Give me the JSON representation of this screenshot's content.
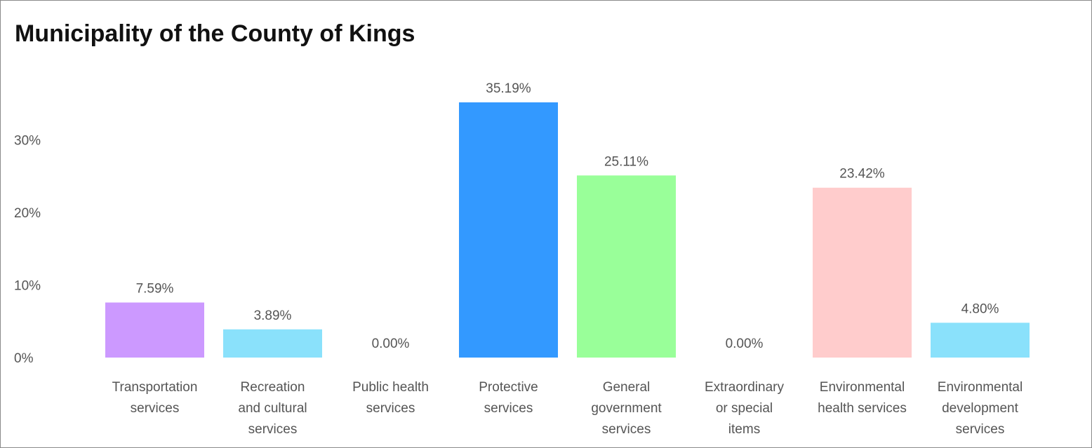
{
  "chart_data": {
    "type": "bar",
    "title": "Municipality of the County of Kings",
    "xlabel": "",
    "ylabel": "",
    "ylim": [
      0,
      35.19
    ],
    "yticks": [
      0,
      10,
      20,
      30
    ],
    "ytick_labels": [
      "0%",
      "10%",
      "20%",
      "30%"
    ],
    "grid": false,
    "categories": [
      [
        "Transportation",
        "services"
      ],
      [
        "Recreation",
        "and cultural",
        "services"
      ],
      [
        "Public health",
        "services"
      ],
      [
        "Protective",
        "services"
      ],
      [
        "General",
        "government",
        "services"
      ],
      [
        "Extraordinary",
        "or special",
        "items"
      ],
      [
        "Environmental",
        "health services"
      ],
      [
        "Environmental",
        "development",
        "services"
      ]
    ],
    "values": [
      7.59,
      3.89,
      0.0,
      35.19,
      25.11,
      0.0,
      23.42,
      4.8
    ],
    "value_labels": [
      "7.59%",
      "3.89%",
      "0.00%",
      "35.19%",
      "25.11%",
      "0.00%",
      "23.42%",
      "4.80%"
    ],
    "colors": [
      "#cc99ff",
      "#8ae1fb",
      "#8ae1fb",
      "#3399ff",
      "#99ff99",
      "#cc99ff",
      "#ffcccc",
      "#8ae1fb"
    ]
  }
}
